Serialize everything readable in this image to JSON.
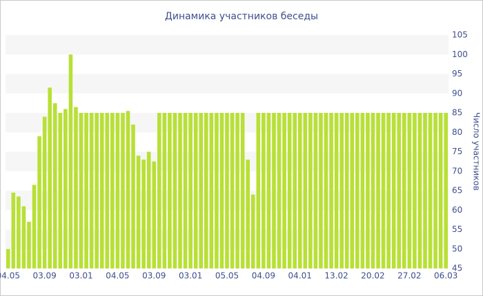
{
  "chart_data": {
    "type": "bar",
    "title": "Динамика участников беседы",
    "y_label": "Число участников",
    "categories": [
      "04.05",
      null,
      null,
      null,
      null,
      null,
      null,
      "03.09",
      null,
      null,
      null,
      null,
      null,
      null,
      "03.01",
      null,
      null,
      null,
      null,
      null,
      null,
      "04.05",
      null,
      null,
      null,
      null,
      null,
      null,
      "03.09",
      null,
      null,
      null,
      null,
      null,
      null,
      "03.01",
      null,
      null,
      null,
      null,
      null,
      null,
      "05.05",
      null,
      null,
      null,
      null,
      null,
      null,
      "04.09",
      null,
      null,
      null,
      null,
      null,
      null,
      "04.01",
      null,
      null,
      null,
      null,
      null,
      null,
      "13.02",
      null,
      null,
      null,
      null,
      null,
      null,
      "20.02",
      null,
      null,
      null,
      null,
      null,
      null,
      "27.02",
      null,
      null,
      null,
      null,
      null,
      null,
      "06.03"
    ],
    "values": [
      50,
      64.5,
      63.5,
      61,
      57,
      66.5,
      79,
      84,
      91.5,
      87.5,
      85,
      86,
      100,
      86.5,
      85,
      85,
      85,
      85,
      85,
      85,
      85,
      85,
      85,
      85.5,
      82,
      74,
      73,
      75,
      72.5,
      85,
      85,
      85,
      85,
      85,
      85,
      85,
      85,
      85,
      85,
      85,
      85,
      85,
      85,
      85,
      85,
      85,
      73,
      64,
      85,
      85,
      85,
      85,
      85,
      85,
      85,
      85,
      85,
      85,
      85,
      85,
      85,
      85,
      85,
      85,
      85,
      85,
      85,
      85,
      85,
      85,
      85,
      85,
      85,
      85,
      85,
      85,
      85,
      85,
      85,
      85,
      85,
      85,
      85,
      85,
      85
    ],
    "color": "#b8e036",
    "ylim": [
      45,
      105
    ],
    "yticks": [
      45,
      50,
      55,
      60,
      65,
      70,
      75,
      80,
      85,
      90,
      95,
      100,
      105
    ],
    "grid": true
  }
}
